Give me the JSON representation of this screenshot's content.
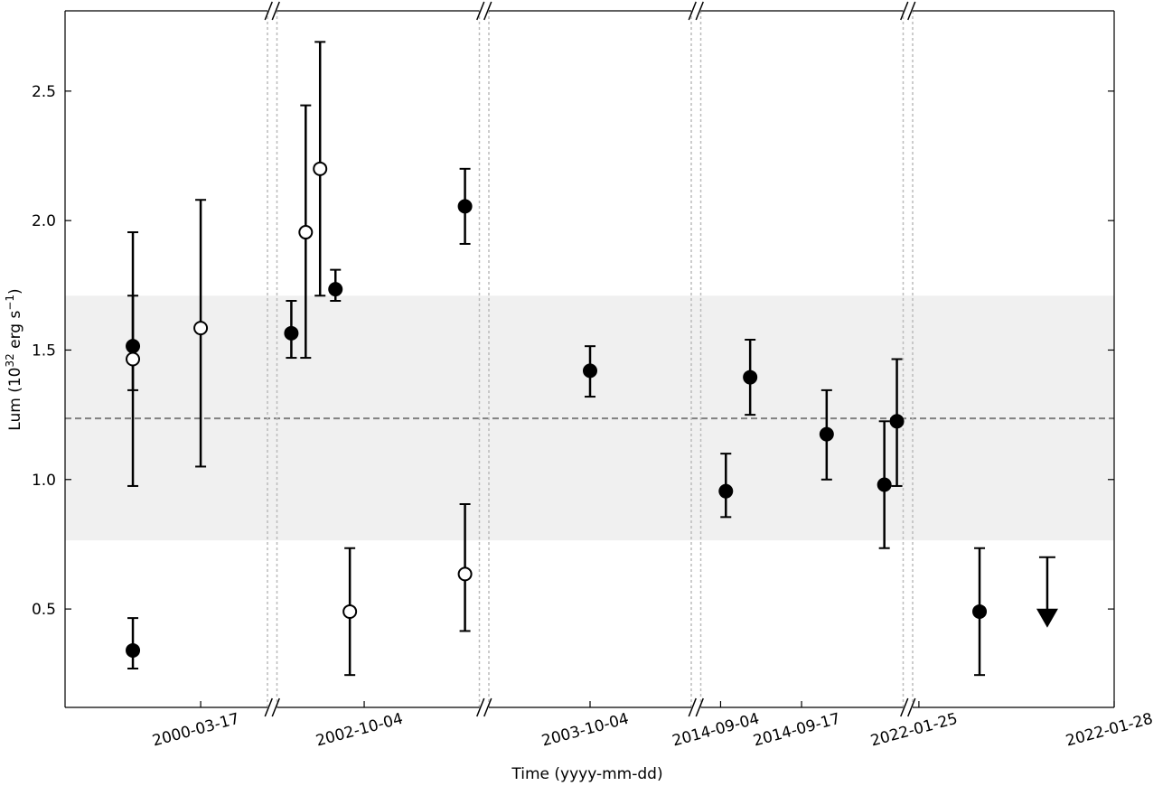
{
  "chart_data": {
    "type": "scatter",
    "xlabel": "Time (yyyy-mm-dd)",
    "ylabel": [
      "Lum (10",
      "32",
      " erg s",
      "−1",
      ")"
    ],
    "ylim": [
      0.12,
      2.81
    ],
    "yticks": [
      0.5,
      {
        "value": 1,
        "label": "1.0"
      },
      1.5,
      {
        "value": 2,
        "label": "2.0"
      },
      2.5
    ],
    "band": [
      0.765,
      1.71
    ],
    "mean": 1.236,
    "color": "#000000",
    "panels": [
      {
        "xlim": [
          0,
          1
        ],
        "xticks": [
          {
            "value": 0.67,
            "label": "2000-03-17"
          }
        ],
        "points": [
          {
            "x": 0.335,
            "y": 1.515,
            "err_low": 1.345,
            "err_high": 1.71,
            "filled": true
          },
          {
            "x": 0.335,
            "y": 1.465,
            "err_low": 0.975,
            "err_high": 1.955,
            "filled": false
          },
          {
            "x": 0.335,
            "y": 0.34,
            "err_low": 0.27,
            "err_high": 0.465,
            "filled": true
          },
          {
            "x": 0.67,
            "y": 1.585,
            "err_low": 1.05,
            "err_high": 2.08,
            "filled": false
          }
        ]
      },
      {
        "xlim": [
          0,
          1
        ],
        "xticks": [
          {
            "value": 0.431,
            "label": "2002-10-04"
          }
        ],
        "points": [
          {
            "x": 0.071,
            "y": 1.565,
            "err_low": 1.47,
            "err_high": 1.69,
            "filled": true
          },
          {
            "x": 0.142,
            "y": 1.955,
            "err_low": 1.47,
            "err_high": 2.445,
            "filled": false
          },
          {
            "x": 0.213,
            "y": 2.2,
            "err_low": 1.71,
            "err_high": 2.69,
            "filled": false
          },
          {
            "x": 0.289,
            "y": 1.735,
            "err_low": 1.69,
            "err_high": 1.81,
            "filled": true
          },
          {
            "x": 0.36,
            "y": 0.49,
            "err_low": 0.245,
            "err_high": 0.735,
            "filled": false
          },
          {
            "x": 0.929,
            "y": 2.055,
            "err_low": 1.91,
            "err_high": 2.2,
            "filled": true
          },
          {
            "x": 0.929,
            "y": 0.635,
            "err_low": 0.415,
            "err_high": 0.905,
            "filled": false
          }
        ]
      },
      {
        "xlim": [
          0,
          1
        ],
        "xticks": [
          {
            "value": 0.5,
            "label": "2003-10-04"
          }
        ],
        "points": [
          {
            "x": 0.5,
            "y": 1.42,
            "err_low": 1.32,
            "err_high": 1.515,
            "filled": true
          }
        ]
      },
      {
        "xlim": [
          0,
          1
        ],
        "xticks": [
          {
            "value": 0.098,
            "label": "2014-09-04"
          },
          {
            "value": 0.498,
            "label": "2014-09-17"
          }
        ],
        "points": [
          {
            "x": 0.124,
            "y": 0.955,
            "err_low": 0.855,
            "err_high": 1.1,
            "filled": true
          },
          {
            "x": 0.244,
            "y": 1.395,
            "err_low": 1.25,
            "err_high": 1.54,
            "filled": true
          },
          {
            "x": 0.622,
            "y": 1.175,
            "err_low": 1.0,
            "err_high": 1.345,
            "filled": true
          },
          {
            "x": 0.907,
            "y": 0.98,
            "err_low": 0.735,
            "err_high": 1.225,
            "filled": true
          },
          {
            "x": 0.969,
            "y": 1.225,
            "err_low": 0.975,
            "err_high": 1.465,
            "filled": true
          }
        ]
      },
      {
        "xlim": [
          0,
          1
        ],
        "xticks": [
          {
            "value": 0.031,
            "label": "2022-01-25"
          },
          {
            "value": 1,
            "label": "2022-01-28"
          }
        ],
        "points": [
          {
            "x": 0.332,
            "y": 0.49,
            "err_low": 0.245,
            "err_high": 0.735,
            "filled": true
          }
        ],
        "upper_limits": [
          {
            "x": 0.668,
            "value": 0.7
          }
        ]
      }
    ]
  }
}
